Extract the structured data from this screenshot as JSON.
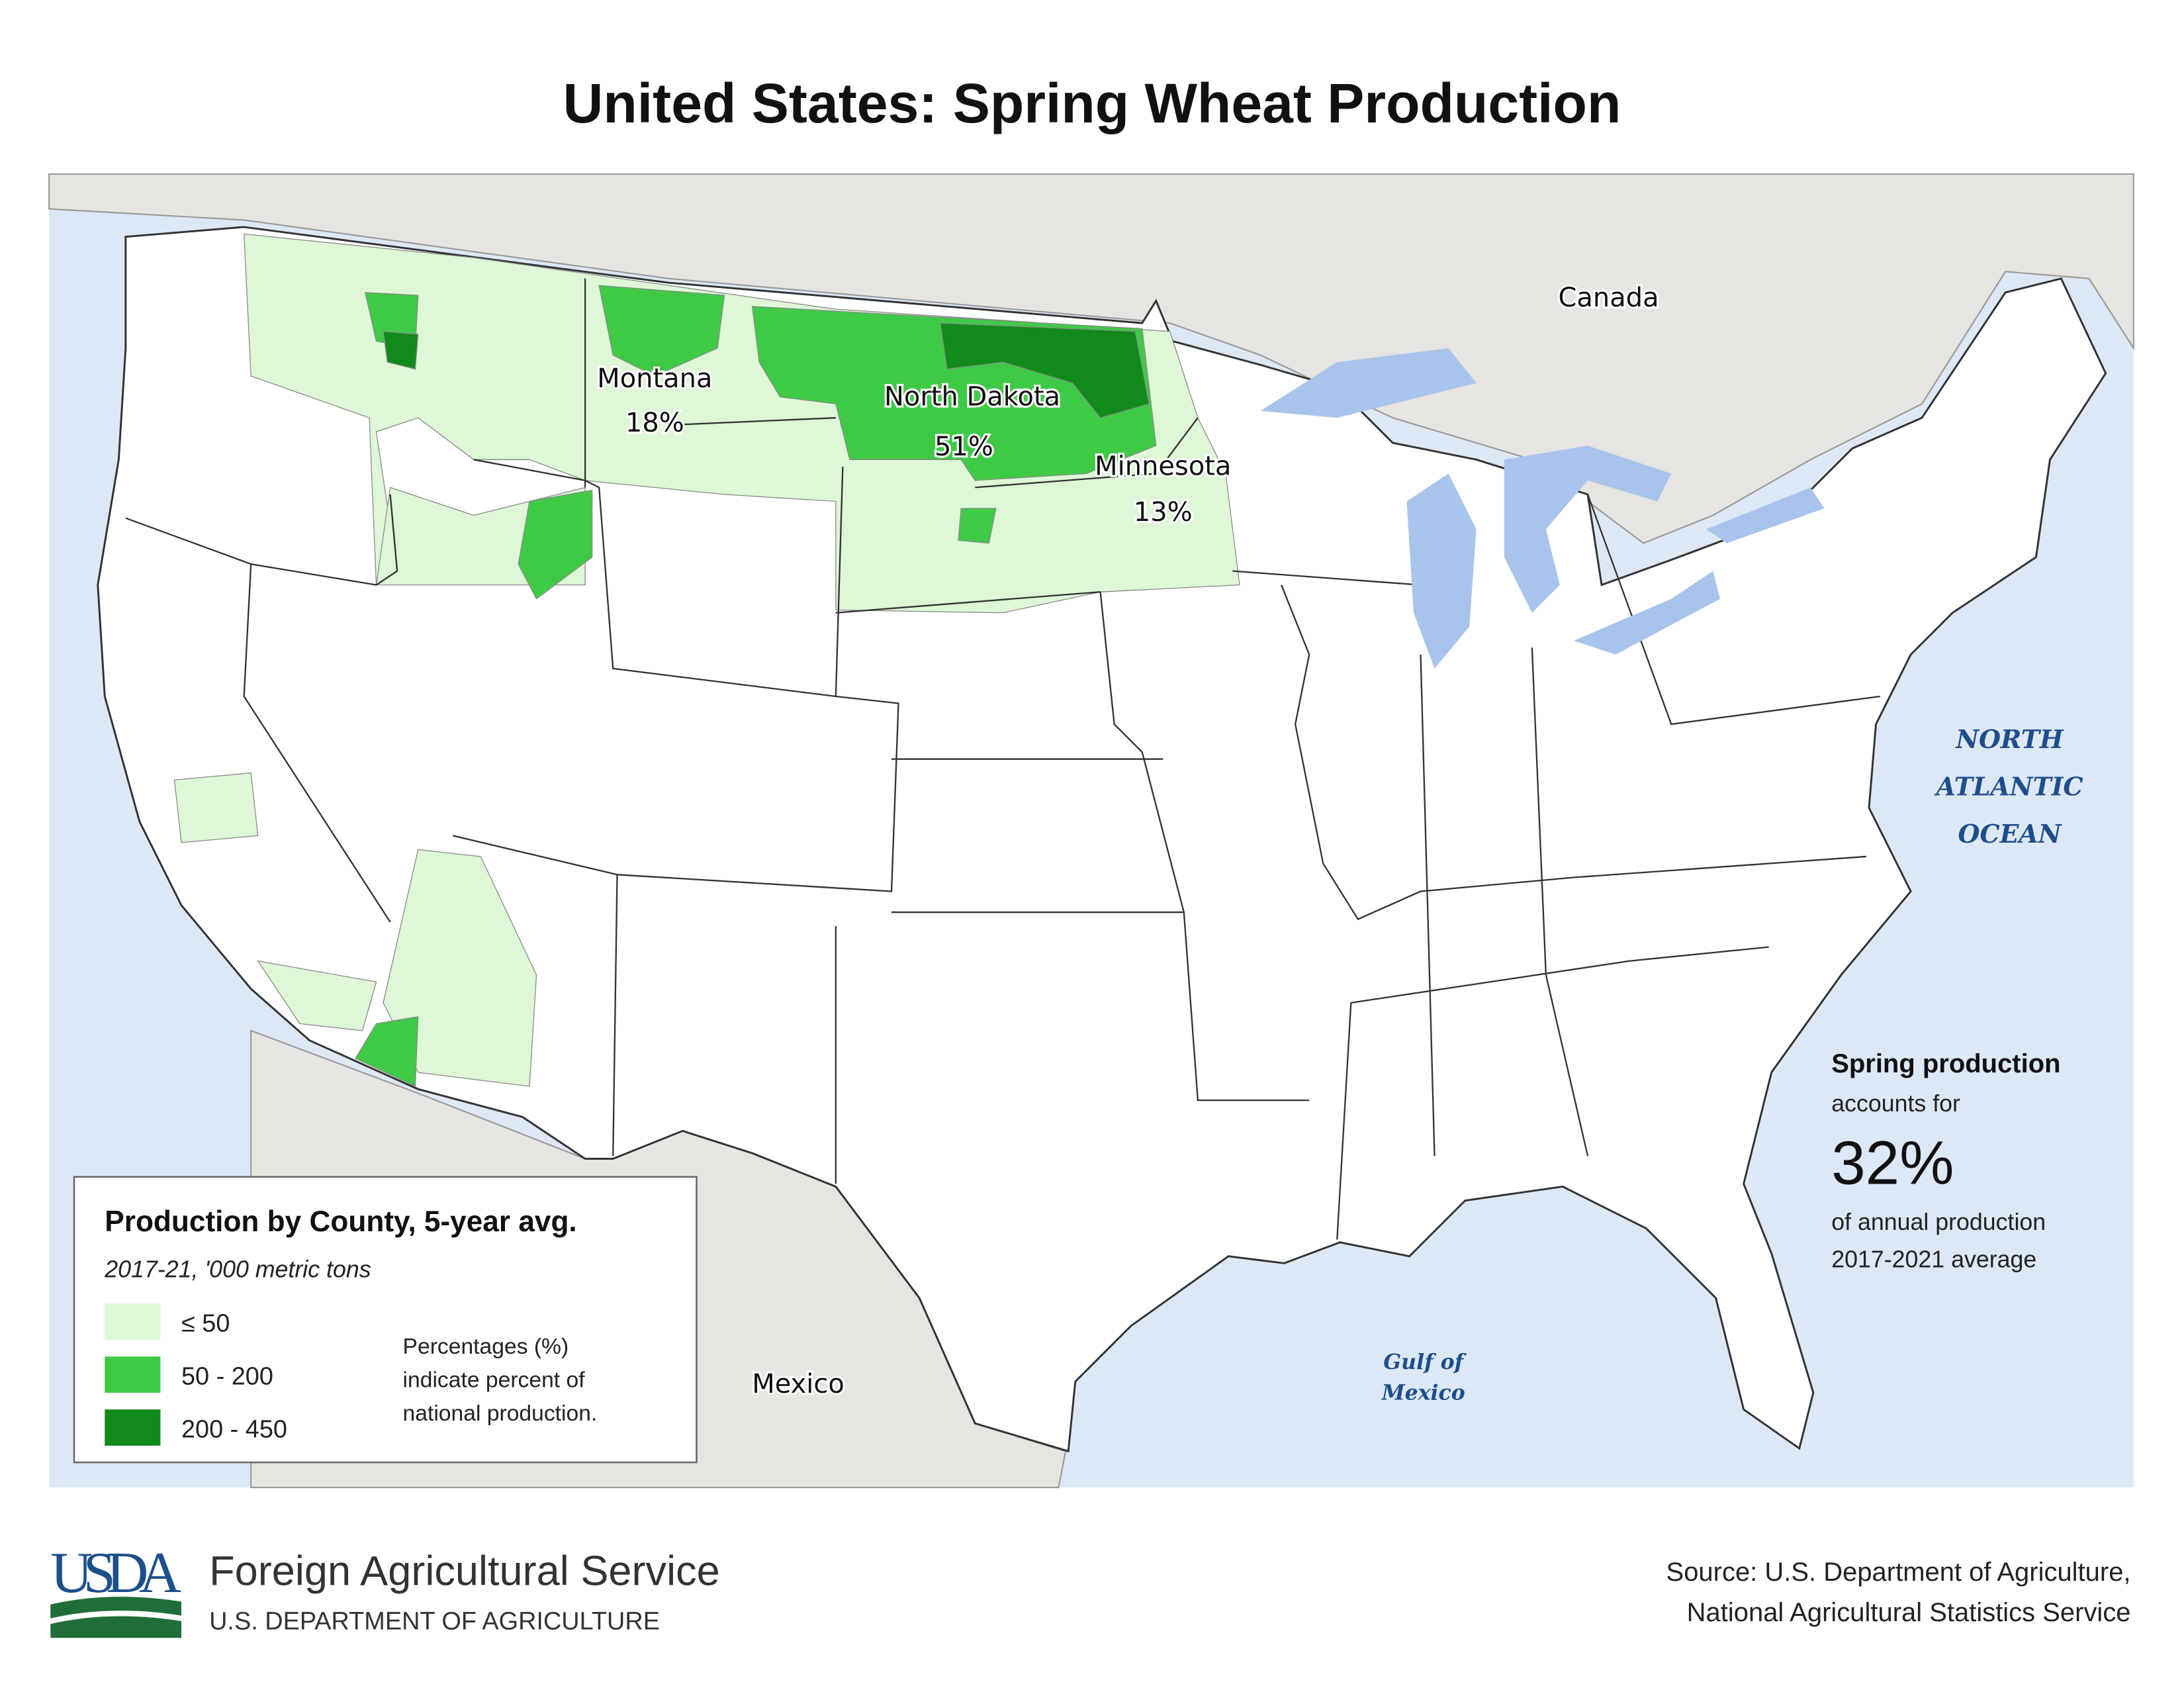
{
  "title": "United States: Spring Wheat Production",
  "map_labels": {
    "canada": "Canada",
    "mexico": "Mexico",
    "ocean": [
      "NORTH",
      "ATLANTIC",
      "OCEAN"
    ],
    "gulf": [
      "Gulf of",
      "Mexico"
    ]
  },
  "states": [
    {
      "name": "Montana",
      "share": "18%"
    },
    {
      "name": "North Dakota",
      "share": "51%"
    },
    {
      "name": "Minnesota",
      "share": "13%"
    }
  ],
  "legend": {
    "title": "Production by County, 5-year avg.",
    "subtitle": "2017-21, '000 metric tons",
    "items": [
      {
        "label": "≤ 50",
        "color": "#ddf7d7"
      },
      {
        "label": "50 - 200",
        "color": "#3fca46"
      },
      {
        "label": "200 - 450",
        "color": "#118a1a"
      }
    ],
    "note": [
      "Percentages (%)",
      "indicate percent of",
      "national production."
    ]
  },
  "callout": {
    "heading": "Spring production",
    "line1": "accounts for",
    "value": "32%",
    "line2": "of annual production",
    "line3": "2017-2021 average"
  },
  "footer": {
    "logo": "USDA",
    "agency": "Foreign Agricultural Service",
    "department": "U.S. DEPARTMENT OF AGRICULTURE",
    "source": [
      "Source: U.S. Department of Agriculture,",
      "National Agricultural Statistics Service"
    ]
  }
}
